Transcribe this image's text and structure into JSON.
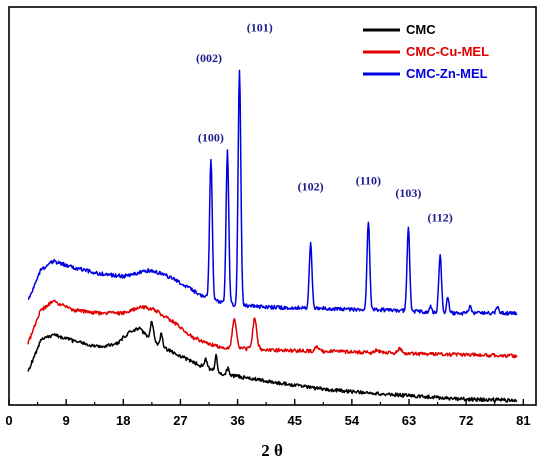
{
  "chart_data": {
    "type": "line",
    "xlabel": "2 θ",
    "ylabel": "",
    "xlim": [
      0,
      83
    ],
    "xticks": [
      0,
      9,
      18,
      27,
      36,
      45,
      54,
      63,
      72,
      81
    ],
    "yticks_shown": false,
    "legend_position": "top-right",
    "series": [
      {
        "name": "CMC",
        "color": "#000000",
        "baseline": [
          [
            3,
            0.11
          ],
          [
            5,
            0.21
          ],
          [
            7,
            0.23
          ],
          [
            10,
            0.21
          ],
          [
            14,
            0.19
          ],
          [
            17,
            0.2
          ],
          [
            19,
            0.24
          ],
          [
            20.5,
            0.25
          ],
          [
            22,
            0.22
          ],
          [
            24,
            0.19
          ],
          [
            27,
            0.16
          ],
          [
            30,
            0.13
          ],
          [
            34,
            0.1
          ],
          [
            40,
            0.08
          ],
          [
            50,
            0.05
          ],
          [
            60,
            0.035
          ],
          [
            70,
            0.02
          ],
          [
            80,
            0.015
          ]
        ],
        "peaks": [
          [
            22.5,
            0.06,
            0.35
          ],
          [
            24.0,
            0.04,
            0.3
          ],
          [
            31.0,
            0.03,
            0.25
          ],
          [
            32.6,
            0.05,
            0.25
          ],
          [
            34.5,
            0.02,
            0.3
          ]
        ]
      },
      {
        "name": "CMC-Cu-MEL",
        "color": "#e00000",
        "baseline": [
          [
            3,
            0.2
          ],
          [
            5,
            0.31
          ],
          [
            7,
            0.34
          ],
          [
            10,
            0.31
          ],
          [
            14,
            0.3
          ],
          [
            18,
            0.3
          ],
          [
            21,
            0.32
          ],
          [
            23,
            0.31
          ],
          [
            26,
            0.27
          ],
          [
            29,
            0.22
          ],
          [
            33,
            0.19
          ],
          [
            40,
            0.18
          ],
          [
            50,
            0.175
          ],
          [
            60,
            0.17
          ],
          [
            70,
            0.165
          ],
          [
            80,
            0.16
          ]
        ],
        "peaks": [
          [
            35.5,
            0.09,
            0.45
          ],
          [
            38.7,
            0.1,
            0.45
          ],
          [
            48.5,
            0.015,
            0.4
          ],
          [
            58.0,
            0.01,
            0.4
          ],
          [
            61.5,
            0.015,
            0.4
          ]
        ]
      },
      {
        "name": "CMC-Zn-MEL",
        "color": "#0000e0",
        "baseline": [
          [
            3,
            0.34
          ],
          [
            5,
            0.44
          ],
          [
            7,
            0.47
          ],
          [
            10,
            0.45
          ],
          [
            14,
            0.43
          ],
          [
            18,
            0.42
          ],
          [
            22,
            0.44
          ],
          [
            24,
            0.43
          ],
          [
            27,
            0.4
          ],
          [
            30,
            0.36
          ],
          [
            34,
            0.33
          ],
          [
            40,
            0.32
          ],
          [
            50,
            0.315
          ],
          [
            60,
            0.31
          ],
          [
            70,
            0.3
          ],
          [
            80,
            0.3
          ]
        ],
        "peaks": [
          [
            31.8,
            0.46,
            0.3
          ],
          [
            34.4,
            0.5,
            0.3
          ],
          [
            36.3,
            0.77,
            0.3
          ],
          [
            47.5,
            0.21,
            0.3
          ],
          [
            56.6,
            0.29,
            0.3
          ],
          [
            62.9,
            0.27,
            0.3
          ],
          [
            66.4,
            0.02,
            0.25
          ],
          [
            67.9,
            0.19,
            0.3
          ],
          [
            69.1,
            0.05,
            0.25
          ],
          [
            72.6,
            0.02,
            0.3
          ],
          [
            76.9,
            0.02,
            0.3
          ]
        ]
      }
    ],
    "peak_labels": [
      {
        "label": "(100)",
        "x": 31.8,
        "y": 0.86
      },
      {
        "label": "(002)",
        "x": 31.5,
        "y": 1.12
      },
      {
        "label": "(101)",
        "x": 39.5,
        "y": 1.22
      },
      {
        "label": "(102)",
        "x": 47.5,
        "y": 0.7
      },
      {
        "label": "(110)",
        "x": 56.6,
        "y": 0.72
      },
      {
        "label": "(103)",
        "x": 62.9,
        "y": 0.68
      },
      {
        "label": "(112)",
        "x": 67.9,
        "y": 0.6
      }
    ]
  }
}
